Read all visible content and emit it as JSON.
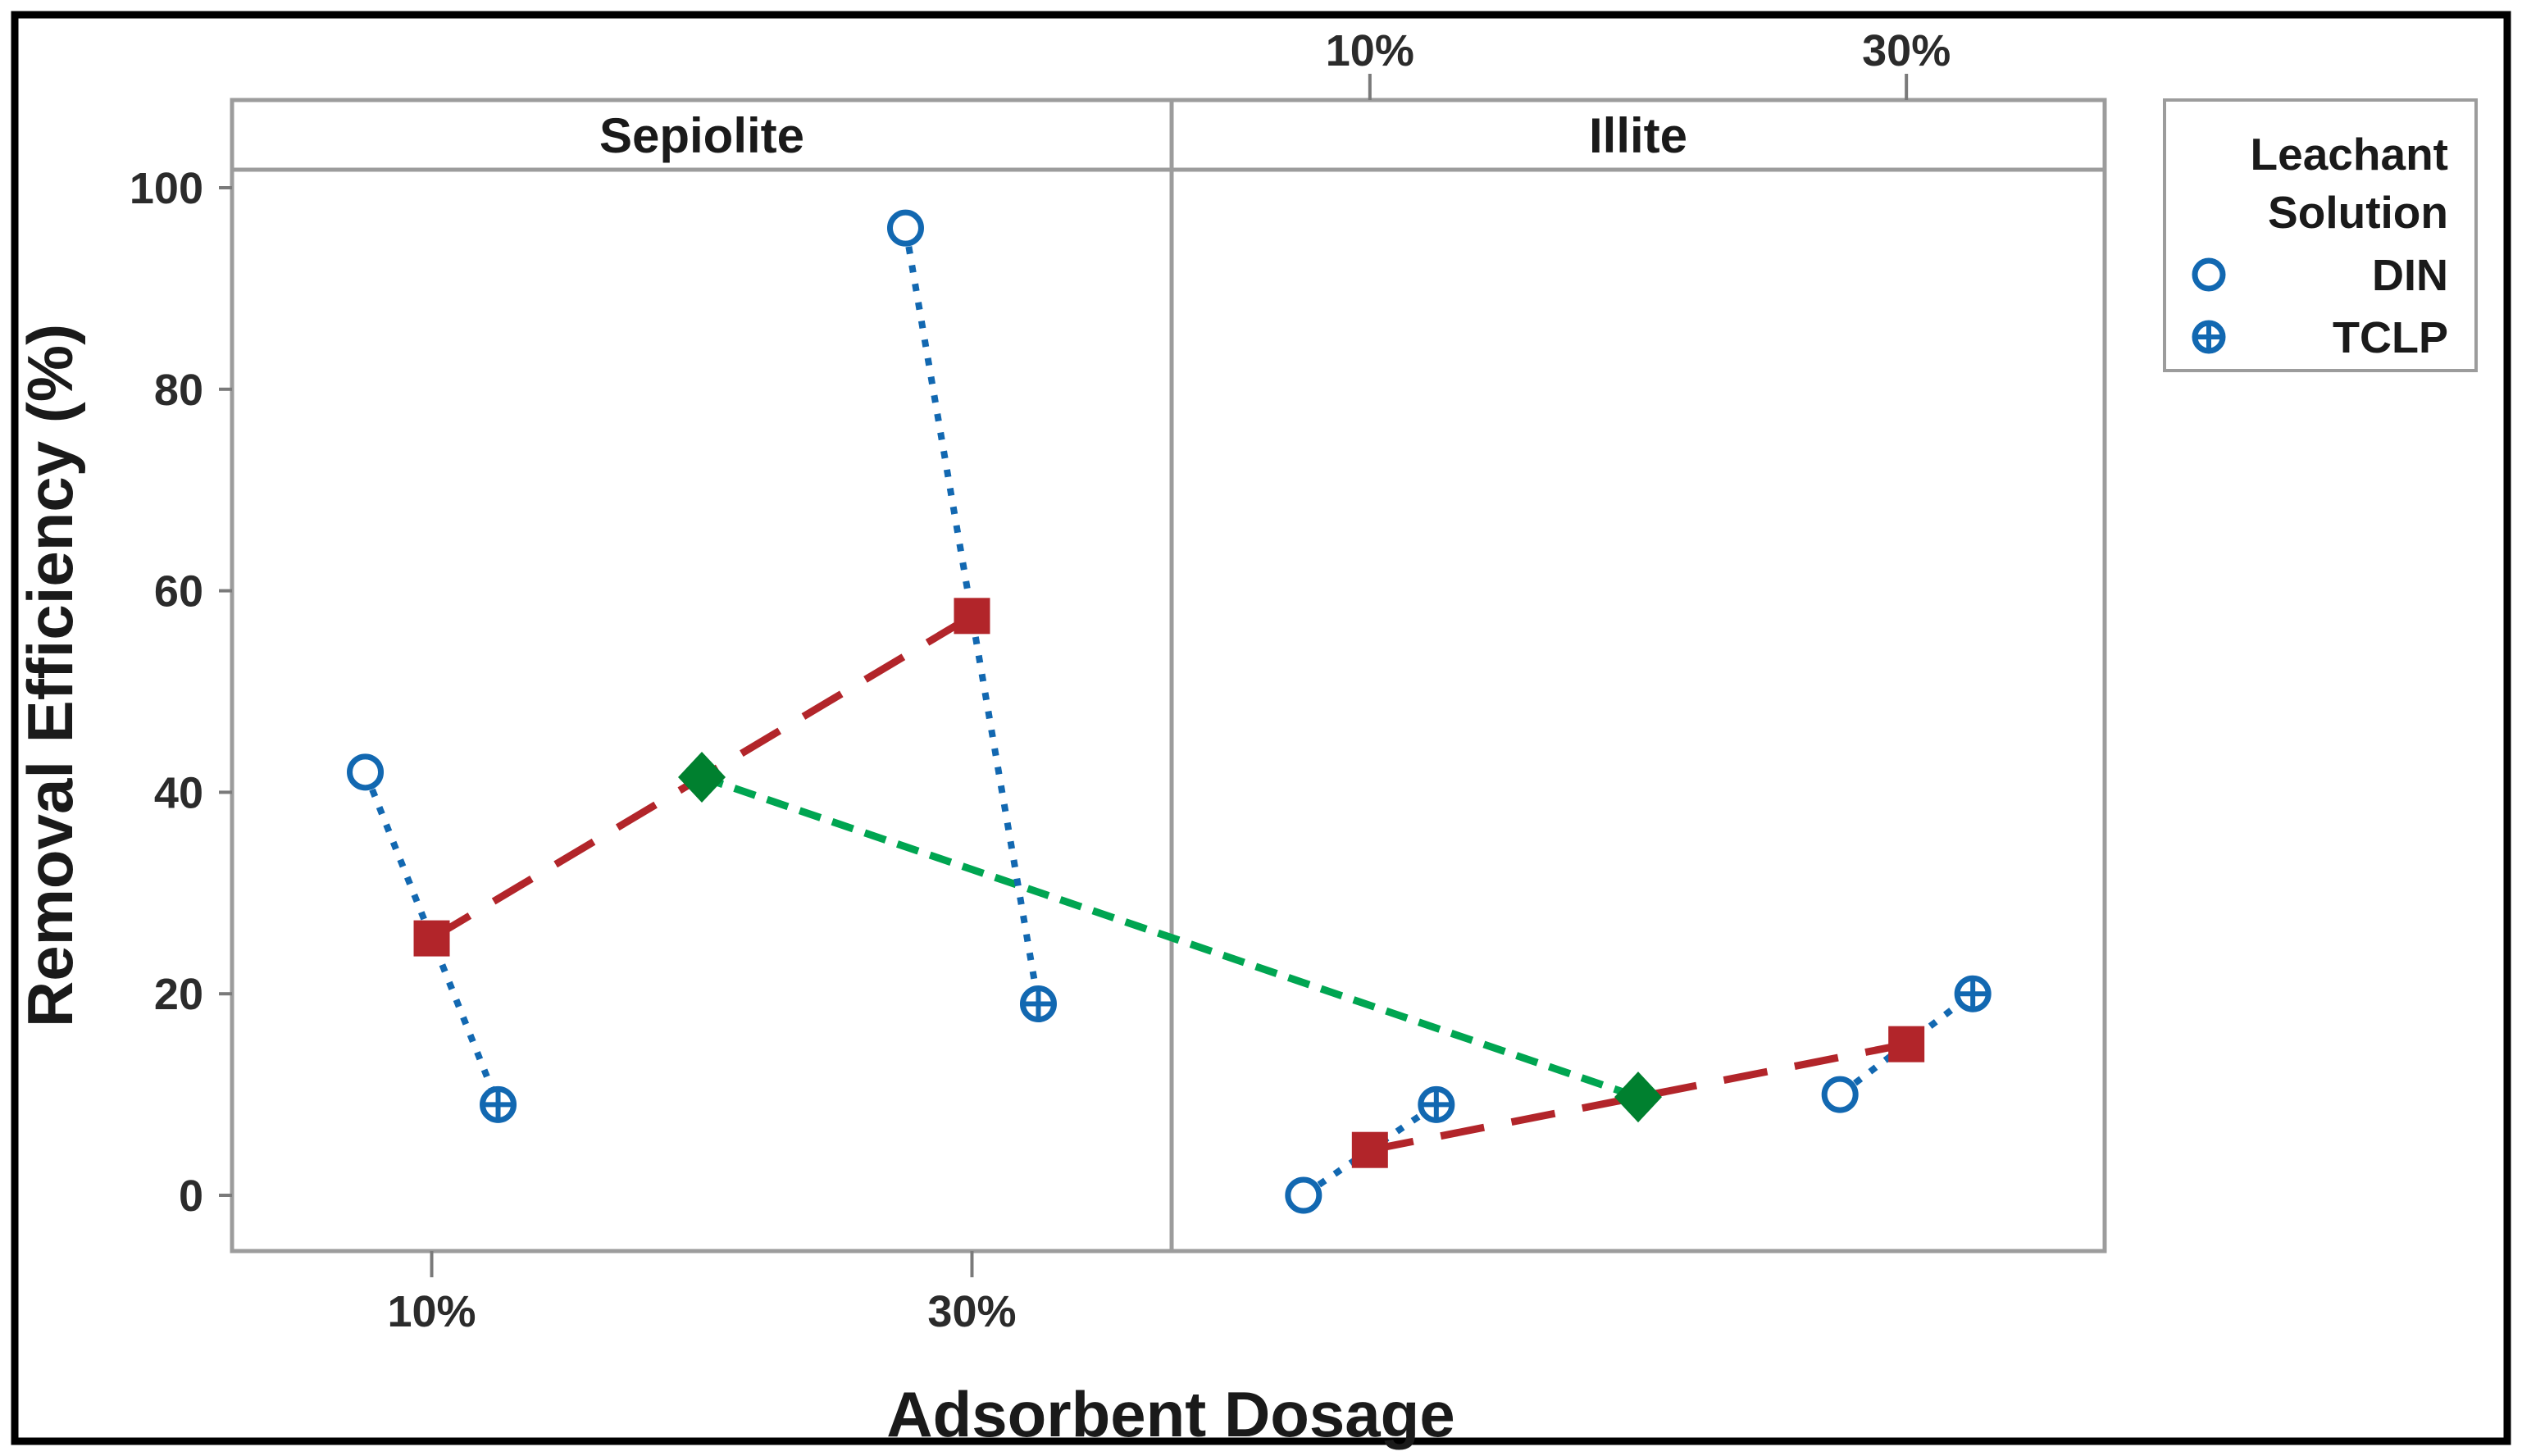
{
  "chart": {
    "x_axis_title": "Adsorbent Dosage",
    "y_axis_title": "Removal Efficiency (%)",
    "y_tick_labels": [
      "100",
      "80",
      "60",
      "40",
      "20",
      "0"
    ],
    "y_tick_values": [
      100,
      80,
      60,
      40,
      20,
      0
    ],
    "dosage_levels": [
      "10%",
      "30%"
    ],
    "panel_labels": [
      "Sepiolite",
      "Illite"
    ],
    "legend": {
      "title_lines": [
        "Leachant",
        "Solution"
      ],
      "items": [
        {
          "label": "DIN",
          "marker": "open-circle-icon"
        },
        {
          "label": "TCLP",
          "marker": "circle-cross-icon"
        }
      ]
    },
    "colors": {
      "blue": "#1268B1",
      "red": "#B2252A",
      "green_line": "#00A551",
      "green_diamond": "#00802F",
      "panel_border": "#9C9C9C",
      "tick_mark": "#7A7A7A",
      "tick_text": "#2B2B2B",
      "text_dark": "#1A1A1A",
      "outer_border": "#000000"
    }
  },
  "chart_data": {
    "type": "line",
    "subtype": "interaction-plot-with-data-means",
    "categories": [
      "10%",
      "30%"
    ],
    "xlabel": "Adsorbent Dosage",
    "ylabel": "Removal Efficiency (%)",
    "ylim": [
      -5.5,
      108.5
    ],
    "y_ticks": [
      0,
      20,
      40,
      60,
      80,
      100
    ],
    "grid": false,
    "legend_title": "Leachant Solution",
    "legend_position": "top-right-outside",
    "panels": [
      {
        "panel": "Sepiolite",
        "series": [
          {
            "name": "DIN",
            "values": [
              42,
              96
            ]
          },
          {
            "name": "TCLP",
            "values": [
              9,
              19
            ]
          }
        ],
        "dosage_means": [
          25.5,
          57.5
        ],
        "panel_mean": 41.5
      },
      {
        "panel": "Illite",
        "series": [
          {
            "name": "DIN",
            "values": [
              0,
              10
            ]
          },
          {
            "name": "TCLP",
            "values": [
              9,
              20
            ]
          }
        ],
        "dosage_means": [
          4.5,
          15
        ],
        "panel_mean": 9.75
      }
    ]
  }
}
